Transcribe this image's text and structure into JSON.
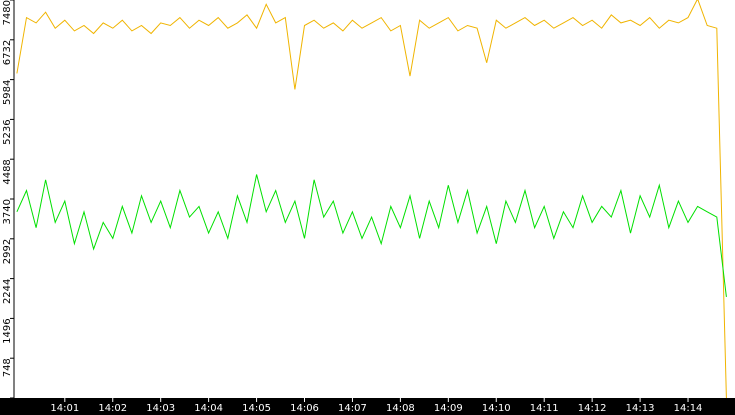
{
  "chart_data": {
    "type": "line",
    "xlim": [
      839.94,
      854.98
    ],
    "xticks": [
      {
        "value": 841,
        "label": "14:01"
      },
      {
        "value": 842,
        "label": "14:02"
      },
      {
        "value": 843,
        "label": "14:03"
      },
      {
        "value": 844,
        "label": "14:04"
      },
      {
        "value": 845,
        "label": "14:05"
      },
      {
        "value": 846,
        "label": "14:06"
      },
      {
        "value": 847,
        "label": "14:07"
      },
      {
        "value": 848,
        "label": "14:08"
      },
      {
        "value": 849,
        "label": "14:09"
      },
      {
        "value": 850,
        "label": "14:10"
      },
      {
        "value": 851,
        "label": "14:11"
      },
      {
        "value": 852,
        "label": "14:12"
      },
      {
        "value": 853,
        "label": "14:13"
      },
      {
        "value": 854,
        "label": "14:14"
      }
    ],
    "ylim": [
      0,
      7480
    ],
    "yticks": [
      0,
      748,
      1496,
      2244,
      2992,
      3740,
      4488,
      5236,
      5984,
      6732,
      7480
    ],
    "x": [
      840.0,
      840.2,
      840.4,
      840.6,
      840.8,
      841.0,
      841.2,
      841.4,
      841.6,
      841.8,
      842.0,
      842.2,
      842.4,
      842.6,
      842.8,
      843.0,
      843.2,
      843.4,
      843.6,
      843.8,
      844.0,
      844.2,
      844.4,
      844.6,
      844.8,
      845.0,
      845.2,
      845.4,
      845.6,
      845.8,
      846.0,
      846.2,
      846.4,
      846.6,
      846.8,
      847.0,
      847.2,
      847.4,
      847.6,
      847.8,
      848.0,
      848.2,
      848.4,
      848.6,
      848.8,
      849.0,
      849.2,
      849.4,
      849.6,
      849.8,
      850.0,
      850.2,
      850.4,
      850.6,
      850.8,
      851.0,
      851.2,
      851.4,
      851.6,
      851.8,
      852.0,
      852.2,
      852.4,
      852.6,
      852.8,
      853.0,
      853.2,
      853.4,
      853.6,
      853.8,
      854.0,
      854.2,
      854.4,
      854.6,
      854.8
    ],
    "series": [
      {
        "color": "#f0b400",
        "values": [
          6100,
          7150,
          7050,
          7250,
          6950,
          7100,
          6900,
          7000,
          6850,
          7050,
          6950,
          7100,
          6900,
          7000,
          6850,
          7050,
          7000,
          7150,
          6950,
          7100,
          7000,
          7150,
          6950,
          7050,
          7200,
          6950,
          7400,
          7050,
          7150,
          5800,
          7000,
          7100,
          6950,
          7050,
          6900,
          7100,
          6950,
          7050,
          7150,
          6900,
          7000,
          6050,
          7100,
          6950,
          7050,
          7150,
          6900,
          7000,
          6950,
          6300,
          7100,
          6950,
          7050,
          7150,
          7000,
          7100,
          6950,
          7050,
          7150,
          7000,
          7100,
          6950,
          7200,
          7050,
          7100,
          7000,
          7150,
          6950,
          7100,
          7050,
          7150,
          7500,
          7000,
          6950,
          0
        ]
      },
      {
        "color": "#00e000",
        "values": [
          3500,
          3900,
          3200,
          4100,
          3300,
          3700,
          2900,
          3500,
          2800,
          3300,
          3000,
          3600,
          3100,
          3800,
          3300,
          3700,
          3200,
          3900,
          3400,
          3600,
          3100,
          3500,
          3000,
          3800,
          3300,
          4200,
          3500,
          3900,
          3300,
          3700,
          3000,
          4100,
          3400,
          3700,
          3100,
          3500,
          3000,
          3400,
          2900,
          3600,
          3200,
          3800,
          3000,
          3700,
          3200,
          4000,
          3300,
          3900,
          3100,
          3600,
          2900,
          3700,
          3300,
          3900,
          3200,
          3600,
          3000,
          3500,
          3200,
          3800,
          3300,
          3600,
          3400,
          3900,
          3100,
          3800,
          3400,
          4000,
          3200,
          3700,
          3300,
          3600,
          3500,
          3400,
          1900
        ]
      }
    ]
  }
}
